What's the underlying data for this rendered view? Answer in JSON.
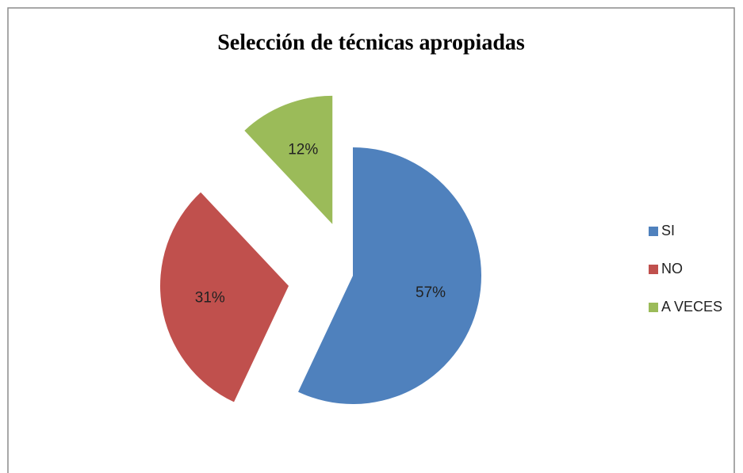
{
  "chart_data": {
    "type": "pie",
    "title": "Selección de técnicas apropiadas",
    "categories": [
      "SI",
      "NO",
      "A VECES"
    ],
    "values": [
      57,
      31,
      12
    ],
    "value_labels": [
      "57%",
      "31%",
      "12%"
    ],
    "colors": [
      "#4f81bd",
      "#c0504d",
      "#9bbb59"
    ],
    "legend": "right"
  }
}
